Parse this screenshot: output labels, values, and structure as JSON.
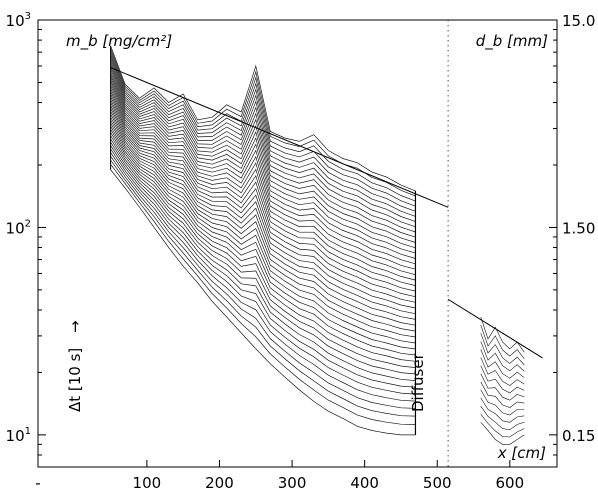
{
  "chart_data": {
    "type": "line",
    "title": "",
    "xlabel": "x [cm]",
    "ylabel": "m_b [mg/cm²]",
    "y2label": "d_b [mm]",
    "xlim": [
      -50,
      665
    ],
    "ylim": [
      7,
      1000
    ],
    "y_scale": "log",
    "grid": false,
    "x_ticks": [
      {
        "value": -50,
        "label": "-"
      },
      {
        "value": 100,
        "label": "100"
      },
      {
        "value": 200,
        "label": "200"
      },
      {
        "value": 300,
        "label": "300"
      },
      {
        "value": 400,
        "label": "400"
      },
      {
        "value": 500,
        "label": "500"
      },
      {
        "value": 600,
        "label": "600"
      }
    ],
    "y_ticks": [
      {
        "value": 10,
        "base": "10",
        "exp": "1"
      },
      {
        "value": 100,
        "base": "10",
        "exp": "2"
      },
      {
        "value": 1000,
        "base": "10",
        "exp": "3"
      }
    ],
    "y2_ticks": [
      {
        "value": 10,
        "label": "0.15"
      },
      {
        "value": 100,
        "label": "1.50"
      },
      {
        "value": 1000,
        "label": "15.0"
      }
    ],
    "annotations": {
      "diffuser_label": "Diffuser",
      "time_step_label": "Δt [10 s]",
      "arrow": "→"
    },
    "diffuser_position": 515,
    "reference_lines": [
      {
        "name": "envelope-main",
        "x": [
          50,
          515
        ],
        "y": [
          590,
          125
        ]
      },
      {
        "name": "envelope-diffuser",
        "x": [
          515,
          645
        ],
        "y": [
          45,
          23.5
        ]
      }
    ],
    "main_section": {
      "x": [
        50,
        70,
        90,
        110,
        130,
        150,
        170,
        190,
        210,
        230,
        250,
        270,
        290,
        310,
        330,
        350,
        370,
        390,
        410,
        430,
        450,
        470
      ],
      "top_profile": [
        750,
        490,
        420,
        470,
        400,
        440,
        330,
        340,
        390,
        360,
        600,
        290,
        270,
        260,
        280,
        235,
        215,
        205,
        185,
        175,
        160,
        150
      ],
      "n_curves": 42,
      "start_x": [
        50,
        55,
        60,
        70,
        80,
        90,
        105,
        120,
        140,
        160,
        180,
        200,
        225,
        250,
        280,
        310,
        340,
        370,
        400,
        430,
        460,
        470
      ],
      "start_y": [
        190,
        155,
        125,
        100,
        80,
        65,
        54,
        44,
        37,
        31,
        26,
        22,
        19,
        16.5,
        14.5,
        13,
        12,
        11,
        10.5,
        10.2,
        10,
        10
      ]
    },
    "diffuser_section": {
      "x": [
        560,
        570,
        580,
        590,
        600,
        610,
        620
      ],
      "top_profile": [
        37,
        29,
        33,
        28,
        26,
        28,
        25
      ],
      "bottom_profile": [
        11.5,
        10.5,
        9.5,
        9,
        9,
        9.5,
        10
      ],
      "n_curves": 14
    }
  }
}
